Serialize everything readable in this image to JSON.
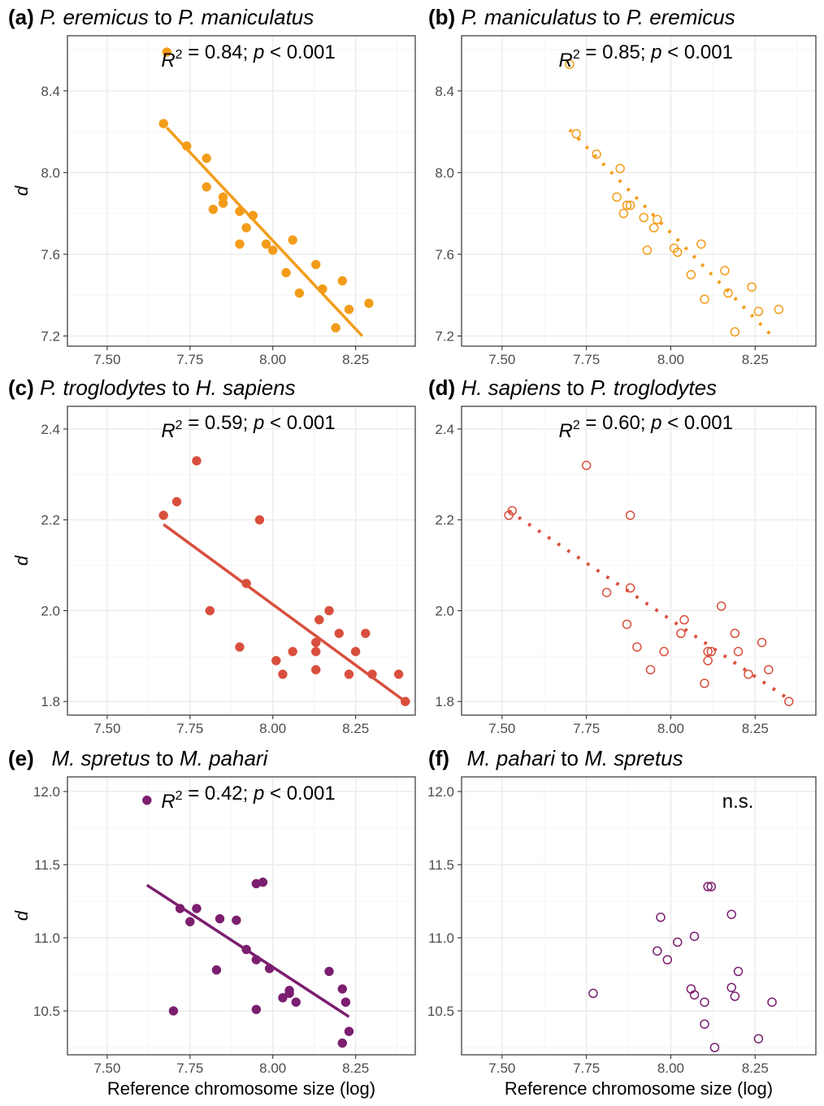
{
  "figure": {
    "x_axis_title": "Reference chromosome size (log)",
    "y_axis_title": "d"
  },
  "chart_data": [
    {
      "type": "scatter",
      "panel": "(a)",
      "title_parts": [
        {
          "text": "P. eremicus",
          "italic": true
        },
        {
          "text": " to ",
          "italic": false
        },
        {
          "text": "P. maniculatus",
          "italic": true
        }
      ],
      "annotation": {
        "r2": "0.84",
        "p": "< 0.001"
      },
      "color": "#f39c19",
      "marker": "filled",
      "fit": {
        "style": "solid",
        "x": [
          7.68,
          8.27
        ],
        "y": [
          8.22,
          7.2
        ]
      },
      "xlim": [
        7.38,
        8.43
      ],
      "ylim": [
        7.15,
        8.67
      ],
      "xticks": [
        "7.50",
        "7.75",
        "8.00",
        "8.25"
      ],
      "yticks": [
        "7.2",
        "7.6",
        "8.0",
        "8.4"
      ],
      "show_ylabel": true,
      "show_xlabel": false,
      "points": [
        [
          7.68,
          8.59
        ],
        [
          7.67,
          8.24
        ],
        [
          7.74,
          8.13
        ],
        [
          7.8,
          8.07
        ],
        [
          7.8,
          7.93
        ],
        [
          7.82,
          7.82
        ],
        [
          7.85,
          7.88
        ],
        [
          7.85,
          7.85
        ],
        [
          7.9,
          7.81
        ],
        [
          7.9,
          7.65
        ],
        [
          7.92,
          7.73
        ],
        [
          7.94,
          7.79
        ],
        [
          7.98,
          7.65
        ],
        [
          8.0,
          7.62
        ],
        [
          8.04,
          7.51
        ],
        [
          8.06,
          7.67
        ],
        [
          8.08,
          7.41
        ],
        [
          8.13,
          7.55
        ],
        [
          8.15,
          7.43
        ],
        [
          8.19,
          7.24
        ],
        [
          8.21,
          7.47
        ],
        [
          8.23,
          7.33
        ],
        [
          8.29,
          7.36
        ]
      ]
    },
    {
      "type": "scatter",
      "panel": "(b)",
      "title_parts": [
        {
          "text": "P. maniculatus",
          "italic": true
        },
        {
          "text": " to ",
          "italic": false
        },
        {
          "text": "P. eremicus",
          "italic": true
        }
      ],
      "annotation": {
        "r2": "0.85",
        "p": "< 0.001"
      },
      "color": "#f39c19",
      "marker": "open",
      "fit": {
        "style": "dotted",
        "x": [
          7.7,
          8.3
        ],
        "y": [
          8.21,
          7.2
        ]
      },
      "xlim": [
        7.38,
        8.43
      ],
      "ylim": [
        7.15,
        8.67
      ],
      "xticks": [
        "7.50",
        "7.75",
        "8.00",
        "8.25"
      ],
      "yticks": [
        "7.2",
        "7.6",
        "8.0",
        "8.4"
      ],
      "show_ylabel": false,
      "show_xlabel": false,
      "points": [
        [
          7.7,
          8.53
        ],
        [
          7.72,
          8.19
        ],
        [
          7.78,
          8.09
        ],
        [
          7.85,
          8.02
        ],
        [
          7.84,
          7.88
        ],
        [
          7.86,
          7.8
        ],
        [
          7.87,
          7.84
        ],
        [
          7.88,
          7.84
        ],
        [
          7.92,
          7.78
        ],
        [
          7.93,
          7.62
        ],
        [
          7.95,
          7.73
        ],
        [
          7.96,
          7.77
        ],
        [
          8.01,
          7.63
        ],
        [
          8.02,
          7.61
        ],
        [
          8.06,
          7.5
        ],
        [
          8.09,
          7.65
        ],
        [
          8.1,
          7.38
        ],
        [
          8.16,
          7.52
        ],
        [
          8.17,
          7.41
        ],
        [
          8.19,
          7.22
        ],
        [
          8.24,
          7.44
        ],
        [
          8.26,
          7.32
        ],
        [
          8.32,
          7.33
        ]
      ]
    },
    {
      "type": "scatter",
      "panel": "(c)",
      "title_parts": [
        {
          "text": "P. troglodytes",
          "italic": true
        },
        {
          "text": " to ",
          "italic": false
        },
        {
          "text": "H. sapiens",
          "italic": true
        }
      ],
      "annotation": {
        "r2": "0.59",
        "p": "< 0.001"
      },
      "color": "#d94f3d",
      "marker": "filled",
      "fit": {
        "style": "solid",
        "x": [
          7.67,
          8.4
        ],
        "y": [
          2.19,
          1.8
        ]
      },
      "xlim": [
        7.38,
        8.43
      ],
      "ylim": [
        1.77,
        2.45
      ],
      "xticks": [
        "7.50",
        "7.75",
        "8.00",
        "8.25"
      ],
      "yticks": [
        "1.8",
        "2.0",
        "2.2",
        "2.4"
      ],
      "show_ylabel": true,
      "show_xlabel": false,
      "points": [
        [
          7.67,
          2.21
        ],
        [
          7.71,
          2.24
        ],
        [
          7.77,
          2.33
        ],
        [
          7.81,
          2.0
        ],
        [
          7.9,
          1.92
        ],
        [
          7.92,
          2.06
        ],
        [
          7.96,
          2.2
        ],
        [
          8.01,
          1.89
        ],
        [
          8.03,
          1.86
        ],
        [
          8.06,
          1.91
        ],
        [
          8.13,
          1.93
        ],
        [
          8.13,
          1.87
        ],
        [
          8.13,
          1.91
        ],
        [
          8.14,
          1.98
        ],
        [
          8.17,
          2.0
        ],
        [
          8.2,
          1.95
        ],
        [
          8.23,
          1.86
        ],
        [
          8.25,
          1.91
        ],
        [
          8.28,
          1.95
        ],
        [
          8.3,
          1.86
        ],
        [
          8.38,
          1.86
        ],
        [
          8.4,
          1.8
        ]
      ]
    },
    {
      "type": "scatter",
      "panel": "(d)",
      "title_parts": [
        {
          "text": "H. sapiens",
          "italic": true
        },
        {
          "text": " to ",
          "italic": false
        },
        {
          "text": "P. troglodytes",
          "italic": true
        }
      ],
      "annotation": {
        "r2": "0.60",
        "p": "< 0.001"
      },
      "color": "#d94f3d",
      "marker": "open",
      "fit": {
        "style": "dotted",
        "x": [
          7.52,
          8.36
        ],
        "y": [
          2.22,
          1.8
        ]
      },
      "xlim": [
        7.38,
        8.43
      ],
      "ylim": [
        1.77,
        2.45
      ],
      "xticks": [
        "7.50",
        "7.75",
        "8.00",
        "8.25"
      ],
      "yticks": [
        "1.8",
        "2.0",
        "2.2",
        "2.4"
      ],
      "show_ylabel": false,
      "show_xlabel": false,
      "points": [
        [
          7.52,
          2.21
        ],
        [
          7.53,
          2.22
        ],
        [
          7.75,
          2.32
        ],
        [
          7.81,
          2.04
        ],
        [
          7.87,
          1.97
        ],
        [
          7.88,
          2.05
        ],
        [
          7.88,
          2.21
        ],
        [
          7.9,
          1.92
        ],
        [
          7.94,
          1.87
        ],
        [
          7.98,
          1.91
        ],
        [
          8.03,
          1.95
        ],
        [
          8.04,
          1.98
        ],
        [
          8.1,
          1.84
        ],
        [
          8.11,
          1.91
        ],
        [
          8.11,
          1.89
        ],
        [
          8.12,
          1.91
        ],
        [
          8.15,
          2.01
        ],
        [
          8.19,
          1.95
        ],
        [
          8.2,
          1.91
        ],
        [
          8.23,
          1.86
        ],
        [
          8.27,
          1.93
        ],
        [
          8.29,
          1.87
        ],
        [
          8.35,
          1.8
        ]
      ]
    },
    {
      "type": "scatter",
      "panel": "(e)",
      "title_parts": [
        {
          "text": "M. spretus",
          "italic": true
        },
        {
          "text": " to ",
          "italic": false
        },
        {
          "text": "M. pahari",
          "italic": true
        }
      ],
      "annotation": {
        "r2": "0.42",
        "p": "< 0.001"
      },
      "color": "#7b1e6f",
      "marker": "filled",
      "fit": {
        "style": "solid",
        "x": [
          7.62,
          8.23
        ],
        "y": [
          11.36,
          10.46
        ]
      },
      "xlim": [
        7.38,
        8.43
      ],
      "ylim": [
        10.2,
        12.1
      ],
      "xticks": [
        "7.50",
        "7.75",
        "8.00",
        "8.25"
      ],
      "yticks": [
        "10.5",
        "11.0",
        "11.5",
        "12.0"
      ],
      "show_ylabel": true,
      "show_xlabel": true,
      "points": [
        [
          7.62,
          11.94
        ],
        [
          7.7,
          10.5
        ],
        [
          7.72,
          11.2
        ],
        [
          7.75,
          11.11
        ],
        [
          7.77,
          11.2
        ],
        [
          7.83,
          10.78
        ],
        [
          7.84,
          11.13
        ],
        [
          7.89,
          11.12
        ],
        [
          7.92,
          10.92
        ],
        [
          7.95,
          10.85
        ],
        [
          7.95,
          10.51
        ],
        [
          7.95,
          11.37
        ],
        [
          7.97,
          11.38
        ],
        [
          7.99,
          10.79
        ],
        [
          8.03,
          10.59
        ],
        [
          8.05,
          10.62
        ],
        [
          8.05,
          10.64
        ],
        [
          8.07,
          10.56
        ],
        [
          8.17,
          10.77
        ],
        [
          8.21,
          10.65
        ],
        [
          8.21,
          10.28
        ],
        [
          8.22,
          10.56
        ],
        [
          8.23,
          10.36
        ]
      ]
    },
    {
      "type": "scatter",
      "panel": "(f)",
      "title_parts": [
        {
          "text": "M. pahari",
          "italic": true
        },
        {
          "text": " to ",
          "italic": false
        },
        {
          "text": "M. spretus",
          "italic": true
        }
      ],
      "annotation": {
        "text": "n.s."
      },
      "color": "#7b1e6f",
      "marker": "open",
      "fit": null,
      "xlim": [
        7.38,
        8.43
      ],
      "ylim": [
        10.2,
        12.1
      ],
      "xticks": [
        "7.50",
        "7.75",
        "8.00",
        "8.25"
      ],
      "yticks": [
        "10.5",
        "11.0",
        "11.5",
        "12.0"
      ],
      "show_ylabel": false,
      "show_xlabel": true,
      "points": [
        [
          7.77,
          10.62
        ],
        [
          7.96,
          10.91
        ],
        [
          7.97,
          11.14
        ],
        [
          7.99,
          10.85
        ],
        [
          8.02,
          10.97
        ],
        [
          8.06,
          10.65
        ],
        [
          8.07,
          11.01
        ],
        [
          8.07,
          10.61
        ],
        [
          8.1,
          10.56
        ],
        [
          8.1,
          10.41
        ],
        [
          8.11,
          11.35
        ],
        [
          8.12,
          11.35
        ],
        [
          8.13,
          10.25
        ],
        [
          8.18,
          10.66
        ],
        [
          8.18,
          11.16
        ],
        [
          8.19,
          10.6
        ],
        [
          8.2,
          10.77
        ],
        [
          8.26,
          10.31
        ],
        [
          8.3,
          10.56
        ]
      ]
    }
  ]
}
